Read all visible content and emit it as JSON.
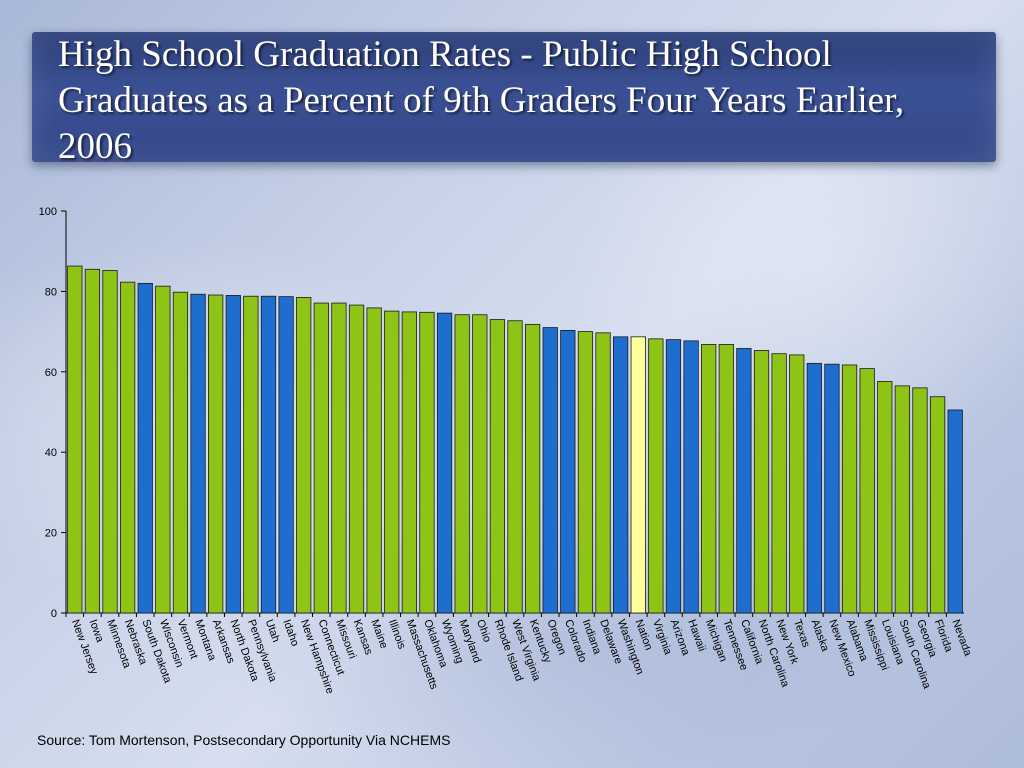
{
  "slide": {
    "title": "High School Graduation Rates - Public High School Graduates as a Percent of 9th Graders Four Years Earlier, 2006",
    "source": "Source: Tom Mortenson, Postsecondary Opportunity Via NCHEMS"
  },
  "colors": {
    "state": "#8dc416",
    "highlight_state": "#1e6ed0",
    "nation": "#ffff99",
    "bar_edge": "#1a1a1a"
  },
  "chart_data": {
    "type": "bar",
    "title": "High School Graduation Rates - Public High School Graduates as a Percent of 9th Graders Four Years Earlier, 2006",
    "xlabel": "",
    "ylabel": "",
    "ylim": [
      0,
      100
    ],
    "yticks": [
      0,
      20,
      40,
      60,
      80,
      100
    ],
    "grid": false,
    "categories": [
      "New Jersey",
      "Iowa",
      "Minnesota",
      "Nebraska",
      "South Dakota",
      "Wisconsin",
      "Vermont",
      "Montana",
      "Arkansas",
      "North Dakota",
      "Pennsylvania",
      "Utah",
      "Idaho",
      "New Hampshire",
      "Connecticut",
      "Missouri",
      "Kansas",
      "Maine",
      "Illinois",
      "Massachusetts",
      "Oklahoma",
      "Wyoming",
      "Maryland",
      "Ohio",
      "Rhode Island",
      "West Virginia",
      "Kentucky",
      "Oregon",
      "Colorado",
      "Indiana",
      "Delaware",
      "Washington",
      "Nation",
      "Virginia",
      "Arizona",
      "Hawaii",
      "Michigan",
      "Tennessee",
      "California",
      "North Carolina",
      "New York",
      "Texas",
      "Alaska",
      "New Mexico",
      "Alabama",
      "Mississippi",
      "Louisiana",
      "South Carolina",
      "Georgia",
      "Florida",
      "Nevada"
    ],
    "values": [
      86.3,
      85.5,
      85.2,
      82.3,
      82.0,
      81.3,
      79.8,
      79.3,
      79.1,
      79.0,
      78.8,
      78.8,
      78.7,
      78.5,
      77.1,
      77.1,
      76.6,
      75.9,
      75.1,
      74.9,
      74.8,
      74.6,
      74.2,
      74.2,
      73.0,
      72.7,
      71.8,
      71.0,
      70.3,
      70.0,
      69.7,
      68.7,
      68.7,
      68.2,
      68.0,
      67.7,
      66.8,
      66.8,
      65.8,
      65.3,
      64.5,
      64.2,
      62.1,
      61.9,
      61.7,
      60.8,
      57.6,
      56.5,
      56.0,
      53.8,
      50.5
    ],
    "colors": [
      "green",
      "green",
      "green",
      "green",
      "blue",
      "green",
      "green",
      "blue",
      "green",
      "blue",
      "green",
      "blue",
      "blue",
      "green",
      "green",
      "green",
      "green",
      "green",
      "green",
      "green",
      "green",
      "blue",
      "green",
      "green",
      "green",
      "green",
      "green",
      "blue",
      "blue",
      "green",
      "green",
      "blue",
      "yellow",
      "green",
      "blue",
      "blue",
      "green",
      "green",
      "blue",
      "green",
      "green",
      "green",
      "blue",
      "blue",
      "green",
      "green",
      "green",
      "green",
      "green",
      "green",
      "blue"
    ]
  }
}
